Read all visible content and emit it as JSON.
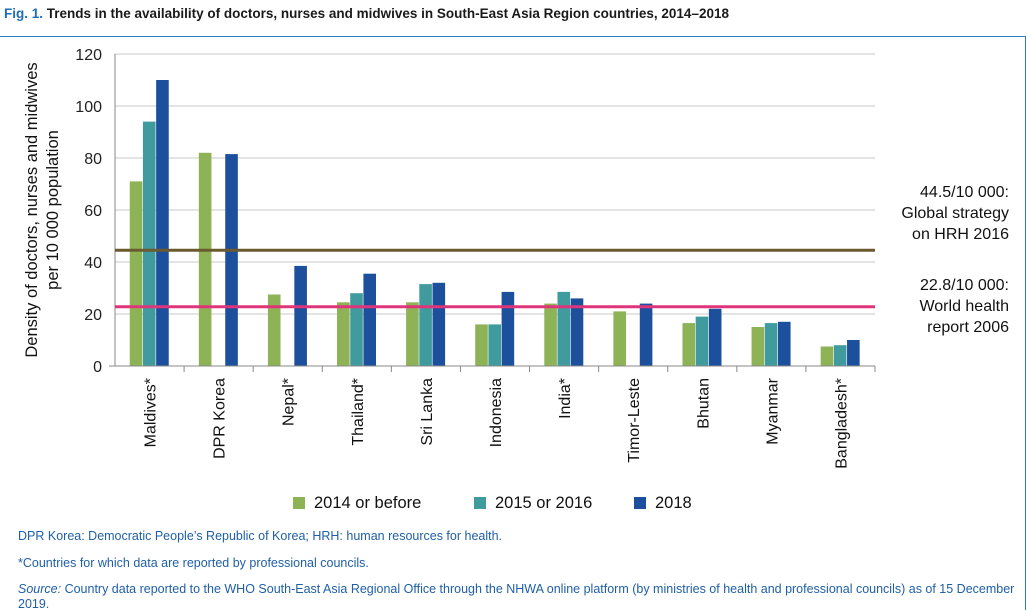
{
  "figure": {
    "label": "Fig. 1.",
    "title": "Trends in the availability of doctors, nurses and midwives in South-East Asia Region countries, 2014–2018"
  },
  "chart_data": {
    "type": "bar",
    "ylabel_line1": "Density of doctors, nurses and midwives",
    "ylabel_line2": "per 10 000 population",
    "xlabel": "",
    "ylim": [
      0,
      120
    ],
    "yticks": [
      0,
      20,
      40,
      60,
      80,
      100,
      120
    ],
    "grid": true,
    "legend_position": "bottom",
    "categories": [
      "Maldives*",
      "DPR Korea",
      "Nepal*",
      "Thailand*",
      "Sri Lanka",
      "Indonesia",
      "India*",
      "Timor-Leste",
      "Bhutan",
      "Myanmar",
      "Bangladesh*"
    ],
    "series": [
      {
        "name": "2014 or before",
        "color": "#8db356",
        "values": [
          71,
          82,
          27.5,
          24.5,
          24.5,
          16,
          24,
          21,
          16.5,
          15,
          7.5
        ]
      },
      {
        "name": "2015 or 2016",
        "color": "#3f9b9e",
        "values": [
          94,
          null,
          null,
          28,
          31.5,
          16,
          28.5,
          null,
          19,
          16.5,
          8
        ]
      },
      {
        "name": "2018",
        "color": "#1c4f9c",
        "values": [
          110,
          81.5,
          38.5,
          35.5,
          32,
          28.5,
          26,
          24,
          22,
          17,
          10
        ]
      }
    ],
    "reference_lines": [
      {
        "value": 44.5,
        "color": "#6b5a2e",
        "label_lines": [
          "44.5/10 000:",
          "Global strategy",
          "on HRH 2016"
        ]
      },
      {
        "value": 22.8,
        "color": "#e0357a",
        "label_lines": [
          "22.8/10 000:",
          "World health",
          "report 2006"
        ]
      }
    ]
  },
  "notes": {
    "abbrev": "DPR Korea: Democratic People’s Republic of Korea; HRH: human resources for health.",
    "asterisk": "*Countries for which data are reported by professional councils.",
    "source_label": "Source:",
    "source_text": " Country data reported to the WHO South-East Asia Regional Office through the NHWA online platform (by ministries of health and professional councils) as of 15 December 2019."
  }
}
